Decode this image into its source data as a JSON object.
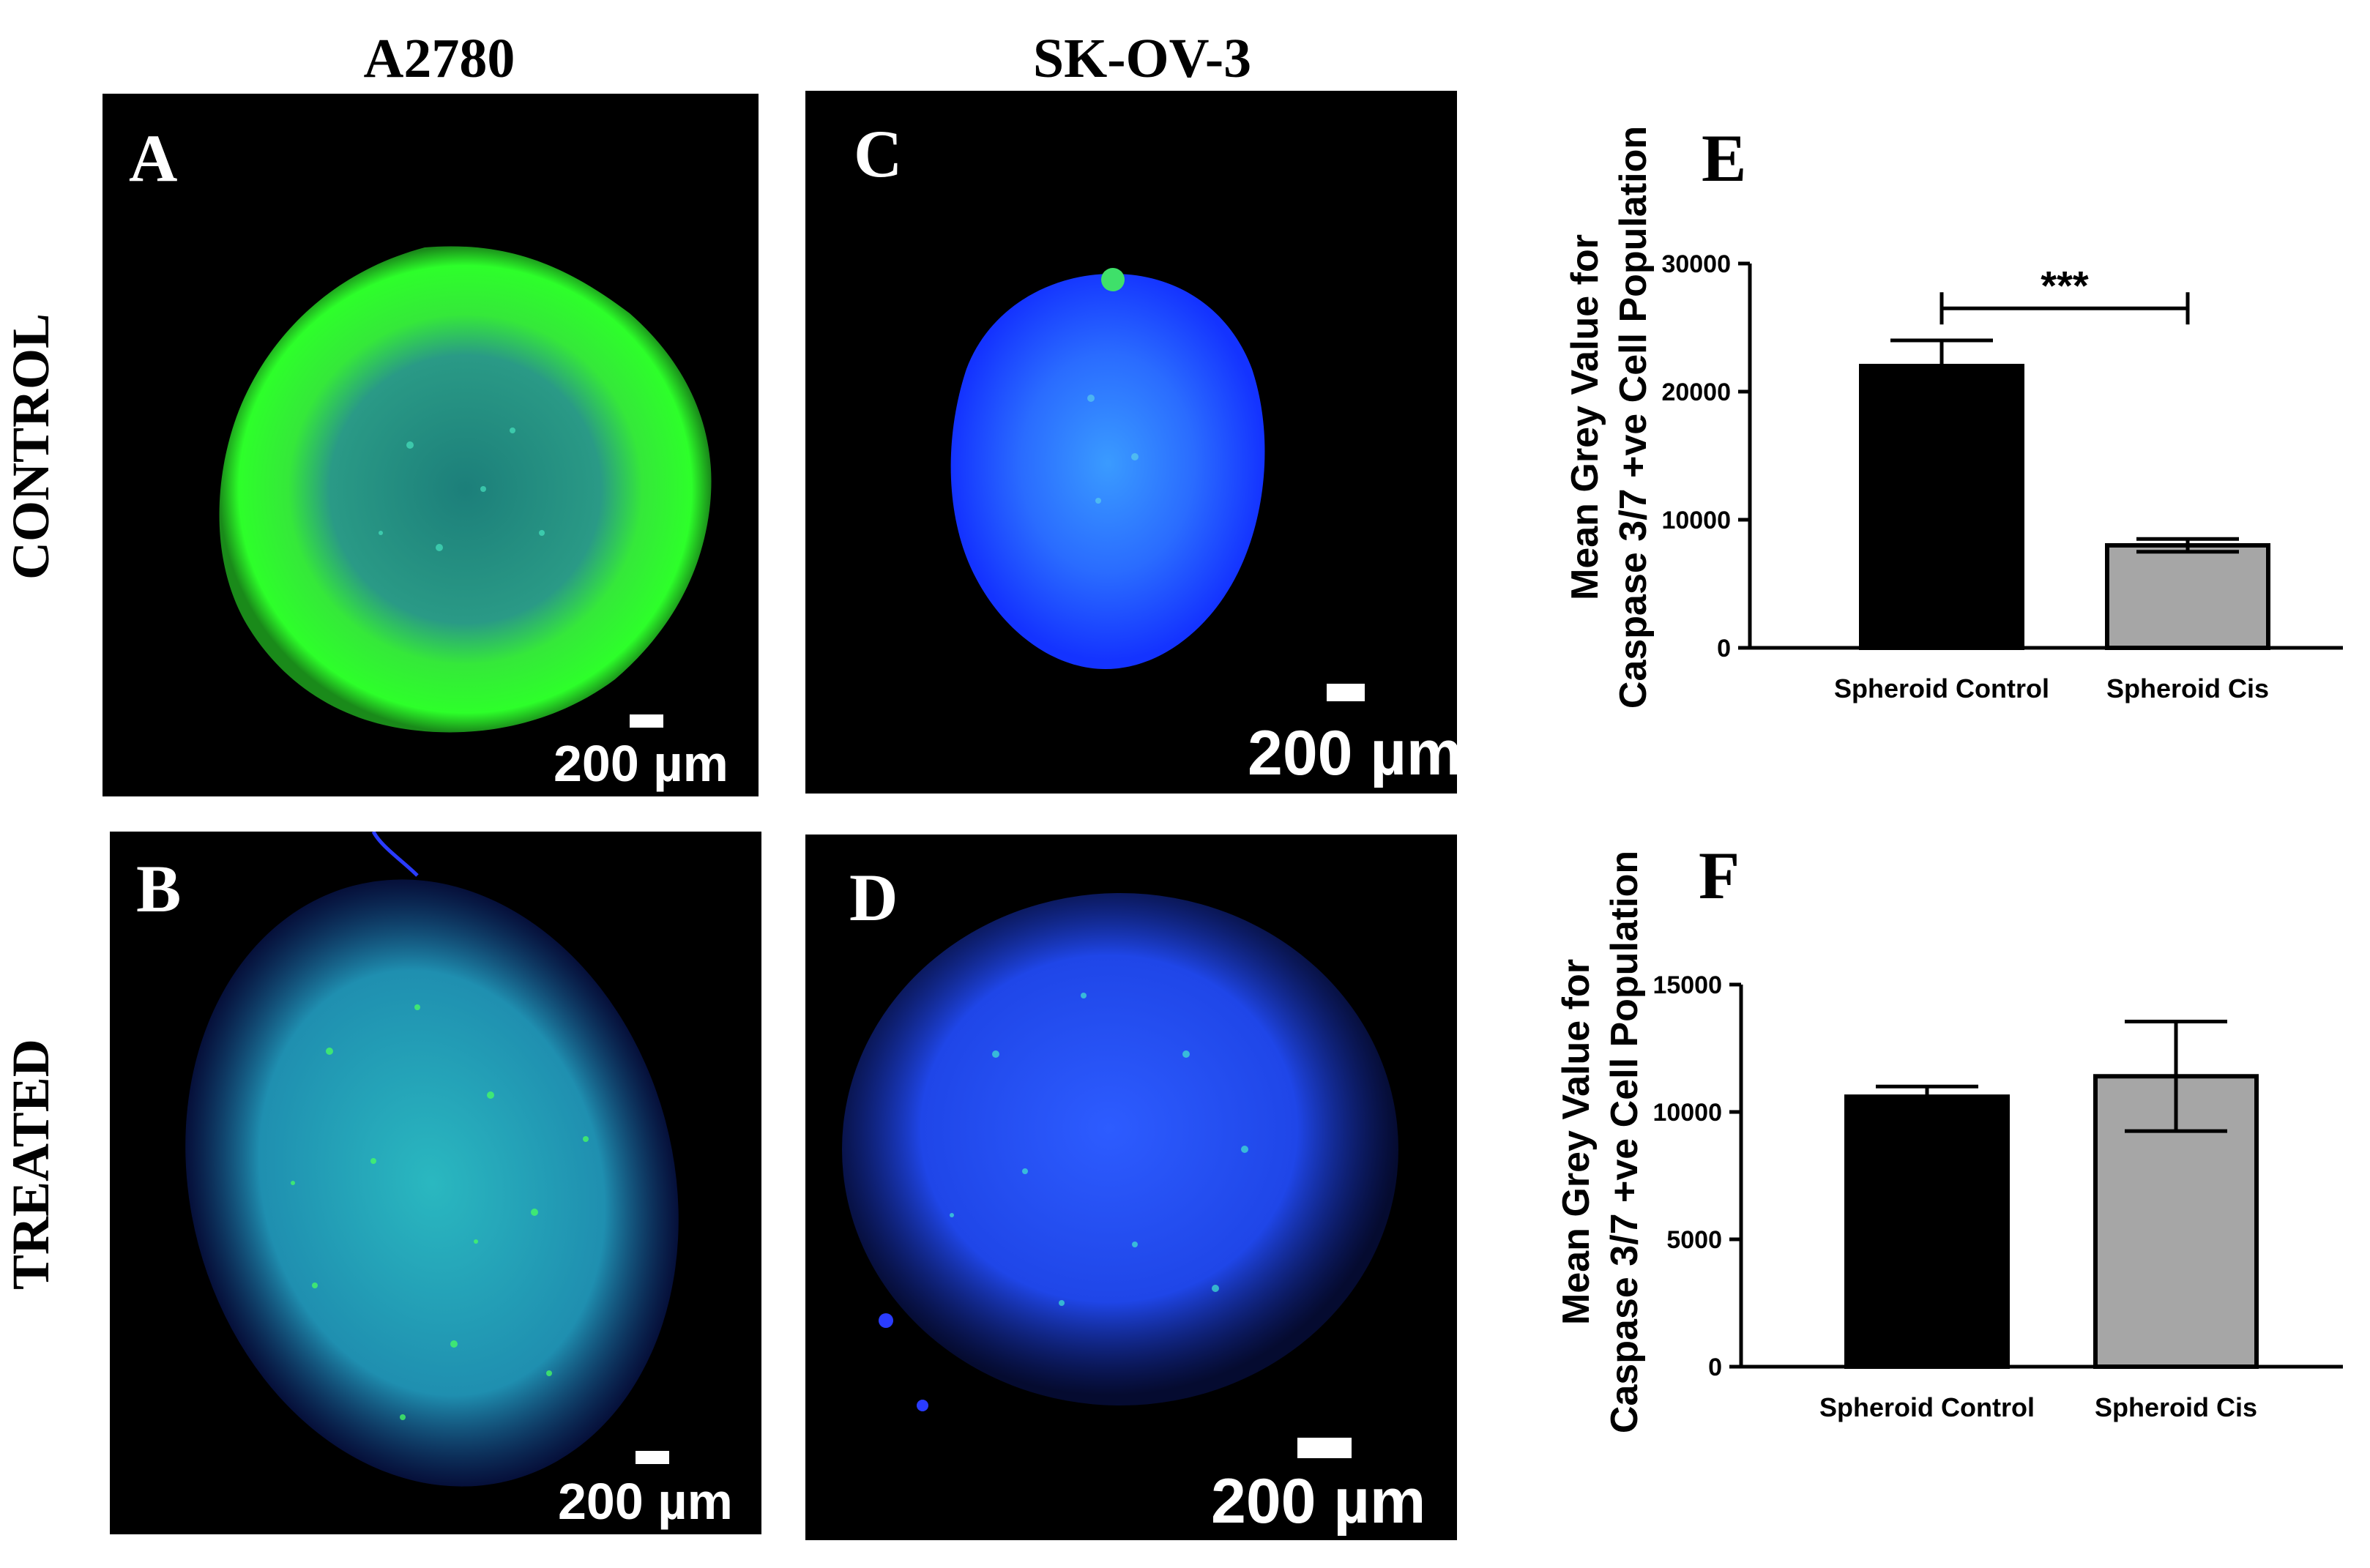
{
  "columns": {
    "left": "A2780",
    "middle": "SK-OV-3"
  },
  "rows": {
    "top": "CONTROL",
    "bottom": "TREATED"
  },
  "panels": [
    {
      "letter": "A",
      "scale_label": "200 µm",
      "stain": "green-rim-spheroid"
    },
    {
      "letter": "B",
      "scale_label": "200 µm",
      "stain": "cyan-speckled-spheroid"
    },
    {
      "letter": "C",
      "scale_label": "200 µm",
      "stain": "blue-spheroid"
    },
    {
      "letter": "D",
      "scale_label": "200 µm",
      "stain": "blue-speckled-spheroid"
    }
  ],
  "colors": {
    "panel_bg": "#000000",
    "green_stain": "#2dff2a",
    "cyan_stain": "#24b8c8",
    "blue_stain": "#1234ff",
    "bar_control": "#000000",
    "bar_cis": "#a6a6a6"
  },
  "chart_data": [
    {
      "letter": "E",
      "type": "bar",
      "ylabel_line1": "Mean Grey Value for",
      "ylabel_line2": "Caspase 3/7 +ve Cell Population",
      "categories": [
        "Spheroid Control",
        "Spheroid Cis"
      ],
      "values": [
        22000,
        8000
      ],
      "errors": [
        2000,
        500
      ],
      "ylim": [
        0,
        30000
      ],
      "yticks": [
        "0",
        "10000",
        "20000",
        "30000"
      ],
      "significance": "***"
    },
    {
      "letter": "F",
      "type": "bar",
      "ylabel_line1": "Mean Grey Value for",
      "ylabel_line2": "Caspase 3/7 +ve Cell Population",
      "categories": [
        "Spheroid Control",
        "Spheroid Cis"
      ],
      "values": [
        10600,
        11400
      ],
      "errors": [
        400,
        2150
      ],
      "ylim": [
        0,
        15000
      ],
      "yticks": [
        "0",
        "5000",
        "10000",
        "15000"
      ],
      "significance": ""
    }
  ]
}
